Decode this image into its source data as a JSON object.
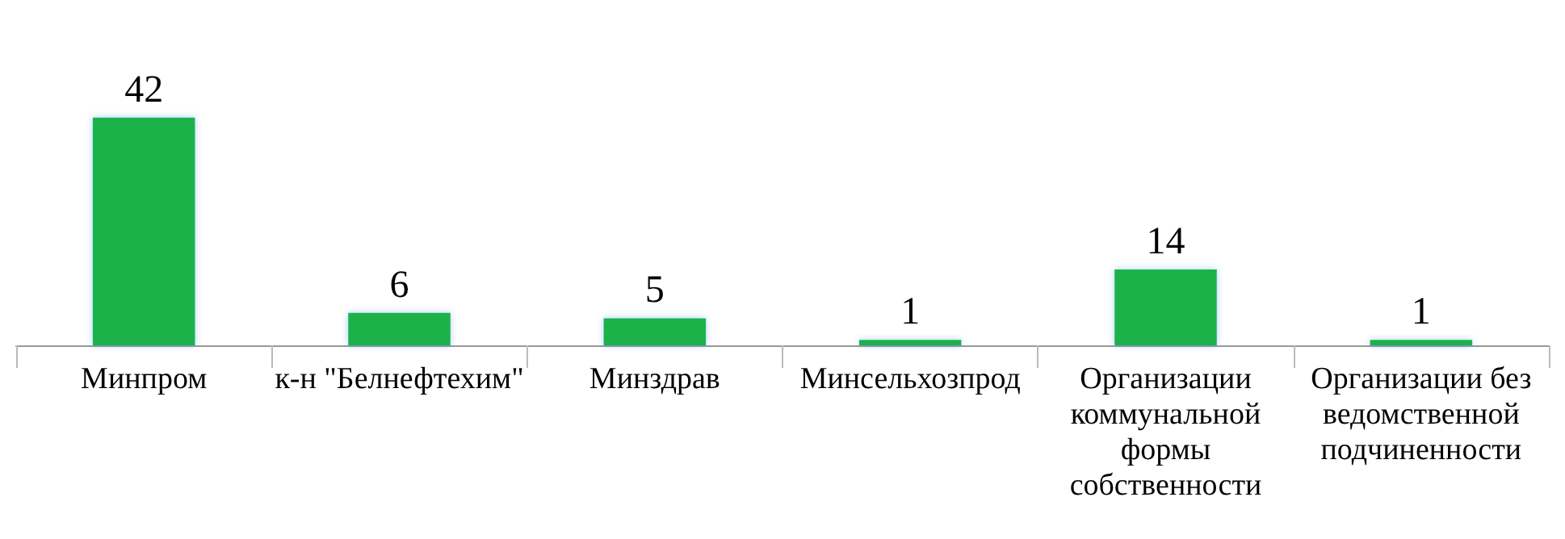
{
  "chart_data": {
    "type": "bar",
    "categories": [
      "Минпром",
      "к-н \"Белнефтехим\"",
      "Минздрав",
      "Минсельхозпрод",
      "Организации коммунальной формы собственности",
      "Организации без ведомственной подчиненности"
    ],
    "values": [
      42,
      6,
      5,
      1,
      14,
      1
    ],
    "color": "#1fb24a",
    "data_labels": true,
    "grid": false
  }
}
